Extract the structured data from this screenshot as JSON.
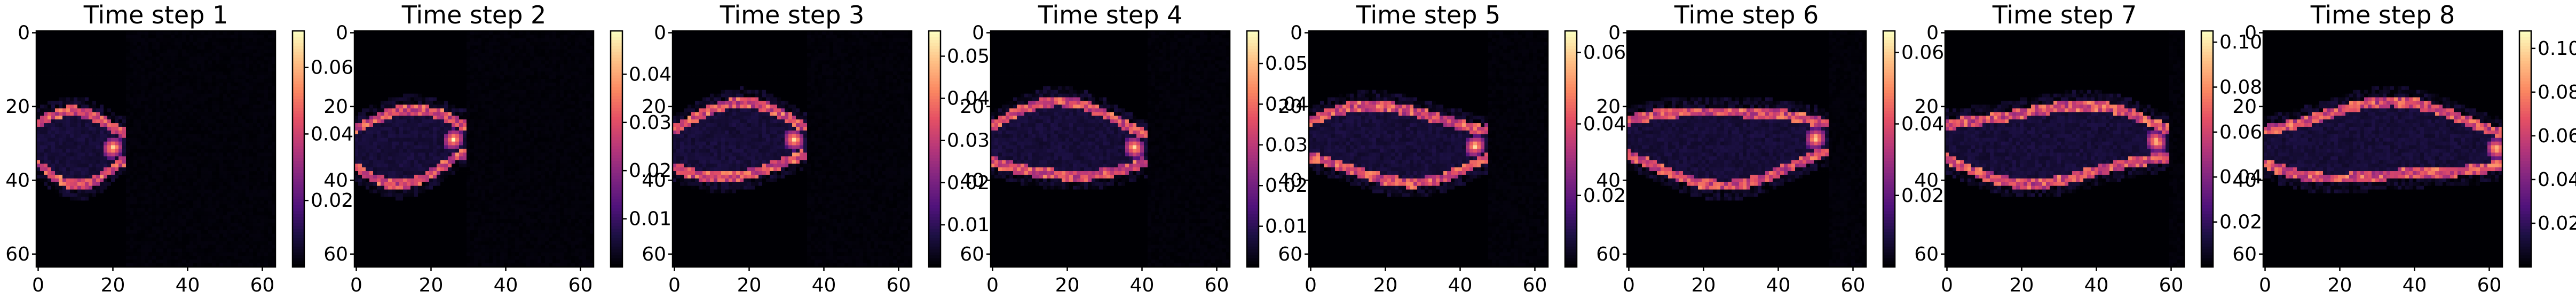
{
  "chart_data": {
    "type": "heatmap",
    "colormap": "magma",
    "grid_size": 64,
    "x_ticks": [
      "0",
      "20",
      "40",
      "60"
    ],
    "y_ticks": [
      "0",
      "20",
      "40",
      "60"
    ],
    "panels": [
      {
        "title": "Time step 1",
        "vmin": 0.0,
        "vmax": 0.071,
        "colorbar_ticks": [
          "0.02",
          "0.04",
          "0.06"
        ],
        "colorbar_tick_values": [
          0.02,
          0.04,
          0.06
        ]
      },
      {
        "title": "Time step 2",
        "vmin": 0.0,
        "vmax": 0.049,
        "colorbar_ticks": [
          "0.01",
          "0.02",
          "0.03",
          "0.04"
        ],
        "colorbar_tick_values": [
          0.01,
          0.02,
          0.03,
          0.04
        ]
      },
      {
        "title": "Time step 3",
        "vmin": 0.0,
        "vmax": 0.056,
        "colorbar_ticks": [
          "0.01",
          "0.02",
          "0.03",
          "0.04",
          "0.05"
        ],
        "colorbar_tick_values": [
          0.01,
          0.02,
          0.03,
          0.04,
          0.05
        ]
      },
      {
        "title": "Time step 4",
        "vmin": 0.0,
        "vmax": 0.058,
        "colorbar_ticks": [
          "0.01",
          "0.02",
          "0.03",
          "0.04",
          "0.05"
        ],
        "colorbar_tick_values": [
          0.01,
          0.02,
          0.03,
          0.04,
          0.05
        ]
      },
      {
        "title": "Time step 5",
        "vmin": 0.0,
        "vmax": 0.066,
        "colorbar_ticks": [
          "0.02",
          "0.04",
          "0.06"
        ],
        "colorbar_tick_values": [
          0.02,
          0.04,
          0.06
        ]
      },
      {
        "title": "Time step 6",
        "vmin": 0.0,
        "vmax": 0.066,
        "colorbar_ticks": [
          "0.02",
          "0.04",
          "0.06"
        ],
        "colorbar_tick_values": [
          0.02,
          0.04,
          0.06
        ]
      },
      {
        "title": "Time step 7",
        "vmin": 0.0,
        "vmax": 0.105,
        "colorbar_ticks": [
          "0.02",
          "0.04",
          "0.06",
          "0.08",
          "0.10"
        ],
        "colorbar_tick_values": [
          0.02,
          0.04,
          0.06,
          0.08,
          0.1
        ]
      },
      {
        "title": "Time step 8",
        "vmin": 0.0,
        "vmax": 0.108,
        "colorbar_ticks": [
          "0.02",
          "0.04",
          "0.06",
          "0.08",
          "0.10"
        ],
        "colorbar_tick_values": [
          0.02,
          0.04,
          0.06,
          0.08,
          0.1
        ]
      }
    ]
  }
}
